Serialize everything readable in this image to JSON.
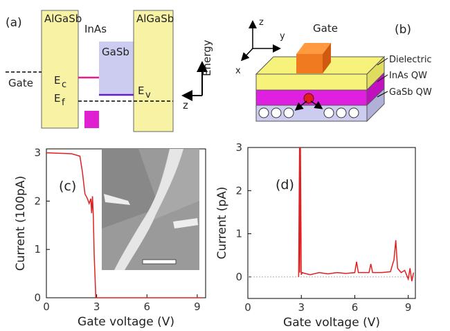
{
  "diagrams": {
    "a": {
      "panel_label": "(a)",
      "left_barrier": "AlGaSb",
      "inas": "InAs",
      "gasb": "GaSb",
      "right_barrier": "AlGaSb",
      "energy": "Energy",
      "gate": "Gate",
      "z": "z",
      "levels": [
        {
          "symbol": "E",
          "sub": "c"
        },
        {
          "symbol": "E",
          "sub": "f"
        },
        {
          "symbol": "E",
          "sub": "v"
        }
      ]
    },
    "b": {
      "panel_label": "(b)",
      "gate": "Gate",
      "dielectric": "Dielectric",
      "inas_qw": "InAs QW",
      "gasb_qw": "GaSb QW",
      "axis_z": "z",
      "axis_y": "y",
      "axis_x": "x"
    }
  },
  "chart_data": [
    {
      "type": "line",
      "panel_label": "(c)",
      "xlabel": "Gate voltage (V)",
      "ylabel": "Current (100pA)",
      "color": "#e02020",
      "x": [
        0,
        1.5,
        2.0,
        2.15,
        2.3,
        2.45,
        2.55,
        2.65,
        2.7,
        2.75,
        2.8,
        2.85,
        2.95,
        3.5,
        9.3
      ],
      "values": [
        3.0,
        2.98,
        2.93,
        2.6,
        2.15,
        2.05,
        1.95,
        2.05,
        1.75,
        2.1,
        1.7,
        0.9,
        0,
        0,
        0
      ],
      "xlim": [
        0,
        9.5
      ],
      "ylim": [
        0,
        3.08
      ],
      "xticks": [
        0,
        3,
        6,
        9
      ],
      "yticks": [
        0,
        1,
        2,
        3
      ]
    },
    {
      "type": "line",
      "panel_label": "(d)",
      "xlabel": "Gate voltage (V)",
      "ylabel": "Current (pA)",
      "color": "#e02020",
      "x": [
        2.85,
        2.9,
        2.92,
        2.95,
        3.0,
        3.05,
        3.2,
        3.5,
        4,
        4.5,
        5,
        5.5,
        6.0,
        6.1,
        6.2,
        6.8,
        6.9,
        7.0,
        7.5,
        8.0,
        8.2,
        8.3,
        8.4,
        8.6,
        8.8,
        9.0,
        9.1,
        9.2,
        9.3
      ],
      "values": [
        0,
        3,
        0.1,
        3,
        0.05,
        0.1,
        0.08,
        0.05,
        0.1,
        0.07,
        0.1,
        0.08,
        0.1,
        0.35,
        0.1,
        0.1,
        0.3,
        0.1,
        0.1,
        0.12,
        0.4,
        0.85,
        0.2,
        0.1,
        0.15,
        -0.05,
        0.2,
        -0.1,
        0.1
      ],
      "xlim": [
        0,
        9.4
      ],
      "ylim": [
        -0.5,
        3
      ],
      "xticks": [
        0,
        3,
        6,
        9
      ],
      "yticks": [
        0,
        1,
        2,
        3
      ]
    }
  ]
}
